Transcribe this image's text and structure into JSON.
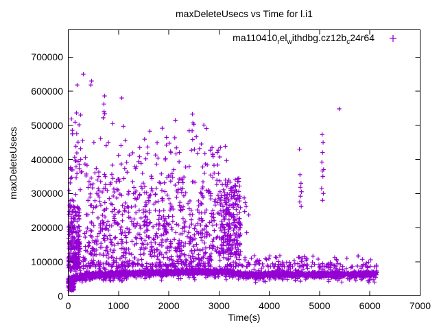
{
  "colors": {
    "marker": "#9400D3",
    "text": "#000000",
    "frame": "#000000",
    "background": "#ffffff"
  },
  "chart_data": {
    "type": "scatter",
    "title": "maxDeleteUsecs vs Time for l.i1",
    "xlabel": "Time(s)",
    "ylabel": "maxDeleteUsecs",
    "xlim": [
      0,
      7000
    ],
    "ylim": [
      0,
      780000
    ],
    "xticks": [
      0,
      1000,
      2000,
      3000,
      4000,
      5000,
      6000,
      7000
    ],
    "yticks": [
      0,
      100000,
      200000,
      300000,
      400000,
      500000,
      600000,
      700000
    ],
    "grid": false,
    "tick_style": "inward-mirrored",
    "marker": {
      "shape": "plus",
      "size": 7,
      "color": "#9400D3"
    },
    "legend": {
      "position": "top-right-inside",
      "marker": "plus",
      "series_label_plain": "ma110410_rel_withdbg.cz12b_c24r64",
      "segments": [
        {
          "t": "ma110410",
          "sub": false
        },
        {
          "t": "r",
          "sub": true
        },
        {
          "t": "el",
          "sub": false
        },
        {
          "t": "w",
          "sub": true
        },
        {
          "t": "ithdbg.cz12b",
          "sub": false
        },
        {
          "t": "c",
          "sub": true
        },
        {
          "t": "24r64",
          "sub": false
        }
      ]
    },
    "series": [
      {
        "name": "ma110410_rel_withdbg.cz12b_c24r64",
        "color": "#9400D3",
        "distribution": {
          "seed": 1337,
          "band": {
            "x_range": [
              0,
              6140
            ],
            "count": 2500,
            "center_points": [
              [
                0,
                42000
              ],
              [
                120,
                52000
              ],
              [
                400,
                60000
              ],
              [
                900,
                64000
              ],
              [
                1600,
                67000
              ],
              [
                2400,
                70000
              ],
              [
                3100,
                70000
              ],
              [
                3430,
                64000
              ],
              [
                3700,
                60000
              ],
              [
                4200,
                64000
              ],
              [
                4800,
                61000
              ],
              [
                5600,
                63000
              ],
              [
                6140,
                64000
              ]
            ],
            "spread": 9000,
            "up_tail_chance": 0.1,
            "up_tail_max": 30000,
            "down_tail_chance": 0.12,
            "down_tail_max": 20000
          },
          "clusters": [
            {
              "name": "left-low",
              "x": [
                0,
                130
              ],
              "y": [
                15000,
                55000
              ],
              "count": 90,
              "pow": 1.0
            },
            {
              "name": "left-column",
              "x": [
                5,
                230
              ],
              "y": [
                80000,
                265000
              ],
              "count": 230,
              "pow": 1.7
            },
            {
              "name": "left-column-high",
              "x": [
                10,
                250
              ],
              "y": [
                265000,
                520000
              ],
              "count": 26,
              "pow": 1.5
            },
            {
              "name": "mid-cloud-low",
              "x": [
                130,
                3430
              ],
              "y": [
                85000,
                205000
              ],
              "count": 560,
              "pow": 1.6
            },
            {
              "name": "mid-cloud-mid",
              "x": [
                350,
                3430
              ],
              "y": [
                205000,
                345000
              ],
              "count": 340,
              "pow": 1.4
            },
            {
              "name": "mid-cloud-high",
              "x": [
                60,
                3150
              ],
              "y": [
                345000,
                465000
              ],
              "count": 105,
              "pow": 1.2
            },
            {
              "name": "upper-sparse",
              "x": [
                800,
                2750
              ],
              "y": [
                455000,
                520000
              ],
              "count": 14,
              "pow": 1.0
            },
            {
              "name": "right-edge-wall",
              "x": [
                3020,
                3430
              ],
              "y": [
                120000,
                345000
              ],
              "count": 170,
              "pow": 1.3
            },
            {
              "name": "right-band-top",
              "x": [
                3450,
                6140
              ],
              "y": [
                85000,
                118000
              ],
              "count": 110,
              "pow": 1.8
            }
          ],
          "extra_points": [
            [
              3500,
              287000
            ],
            [
              3520,
              273000
            ],
            [
              3540,
              262000
            ],
            [
              3510,
              247000
            ],
            [
              3550,
              185000
            ],
            [
              3590,
              237000
            ],
            [
              4600,
              430000
            ],
            [
              4610,
              355000
            ],
            [
              4630,
              330000
            ],
            [
              4615,
              318000
            ],
            [
              4640,
              305000
            ],
            [
              4620,
              292000
            ],
            [
              4605,
              275000
            ],
            [
              4635,
              262000
            ],
            [
              5050,
              473000
            ],
            [
              5070,
              450000
            ],
            [
              5060,
              420000
            ],
            [
              5045,
              392000
            ],
            [
              5080,
              370000
            ],
            [
              5055,
              366000
            ],
            [
              5065,
              350000
            ],
            [
              5040,
              315000
            ],
            [
              5075,
              300000
            ],
            [
              5060,
              280000
            ]
          ],
          "notable_points": [
            [
              164,
              536000
            ],
            [
              177,
              618000
            ],
            [
              246,
              530000
            ],
            [
              300,
              650000
            ],
            [
              450,
              618000
            ],
            [
              464,
              630000
            ],
            [
              696,
              522000
            ],
            [
              709,
              562000
            ],
            [
              712,
              540000
            ],
            [
              723,
              586000
            ],
            [
              725,
              534000
            ],
            [
              1064,
              580000
            ],
            [
              2470,
              533000
            ],
            [
              2500,
              503000
            ],
            [
              5390,
              548000
            ]
          ]
        }
      }
    ]
  }
}
